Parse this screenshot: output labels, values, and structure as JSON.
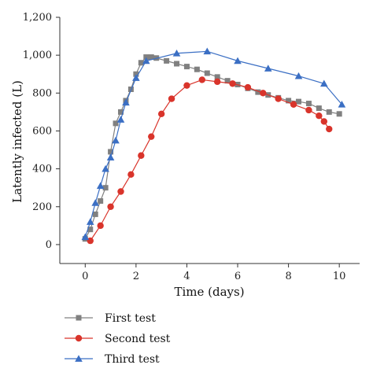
{
  "chart_data": {
    "type": "line",
    "xlabel": "Time (days)",
    "ylabel": "Latently infected (L)",
    "xlim": [
      -1,
      10.8
    ],
    "ylim": [
      -100,
      1200
    ],
    "xticks": [
      0,
      2,
      4,
      6,
      8,
      10
    ],
    "yticks": [
      0,
      200,
      400,
      600,
      800,
      1000,
      1200
    ],
    "xtick_labels": [
      "0",
      "2",
      "4",
      "6",
      "8",
      "10"
    ],
    "ytick_labels": [
      "0",
      "200",
      "400",
      "600",
      "800",
      "1,000",
      "1,200"
    ],
    "grid": false,
    "legend_position": "bottom-left",
    "series": [
      {
        "name": "First test",
        "color": "#808080",
        "marker": "square",
        "x": [
          0,
          0.2,
          0.4,
          0.6,
          0.8,
          1.0,
          1.2,
          1.4,
          1.6,
          1.8,
          2.0,
          2.2,
          2.4,
          2.6,
          2.8,
          3.2,
          3.6,
          4.0,
          4.4,
          4.8,
          5.2,
          5.6,
          6.0,
          6.4,
          6.8,
          7.2,
          7.6,
          8.0,
          8.4,
          8.8,
          9.2,
          9.6,
          10.0
        ],
        "y": [
          30,
          80,
          160,
          230,
          300,
          490,
          640,
          700,
          760,
          820,
          900,
          960,
          990,
          990,
          985,
          970,
          955,
          940,
          925,
          905,
          885,
          865,
          845,
          825,
          805,
          790,
          775,
          760,
          755,
          745,
          720,
          700,
          690
        ]
      },
      {
        "name": "Second test",
        "color": "#d9342b",
        "marker": "circle",
        "x": [
          0.2,
          0.6,
          1.0,
          1.4,
          1.8,
          2.2,
          2.6,
          3.0,
          3.4,
          4.0,
          4.6,
          5.2,
          5.8,
          6.4,
          7.0,
          7.6,
          8.2,
          8.8,
          9.2,
          9.4,
          9.6
        ],
        "y": [
          20,
          100,
          200,
          280,
          370,
          470,
          570,
          690,
          770,
          840,
          870,
          860,
          850,
          830,
          800,
          770,
          740,
          710,
          680,
          650,
          610
        ]
      },
      {
        "name": "Third test",
        "color": "#3b6fc4",
        "marker": "triangle",
        "x": [
          0,
          0.2,
          0.4,
          0.6,
          0.8,
          1.0,
          1.2,
          1.4,
          1.6,
          2.0,
          2.4,
          3.6,
          4.8,
          6.0,
          7.2,
          8.4,
          9.4,
          10.1
        ],
        "y": [
          40,
          120,
          220,
          310,
          400,
          460,
          550,
          660,
          750,
          880,
          970,
          1010,
          1020,
          970,
          930,
          890,
          850,
          740
        ]
      }
    ]
  }
}
